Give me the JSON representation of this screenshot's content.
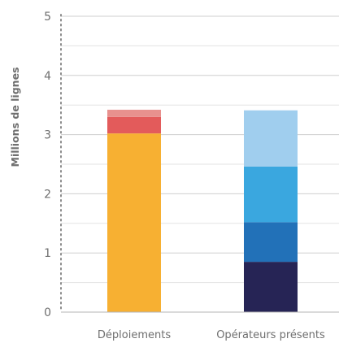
{
  "chart_data": {
    "type": "bar",
    "stacked": true,
    "ylabel": "Millions de lignes",
    "xlabel": "",
    "ylim": [
      0,
      5
    ],
    "yticks": [
      "0",
      "1",
      "2",
      "3",
      "4",
      "5"
    ],
    "minor_gridlines": true,
    "legend": "none",
    "categories": [
      "Déploiements",
      "Opérateurs présents"
    ],
    "bars": [
      {
        "category": "Déploiements",
        "segments": [
          {
            "value": 3.02,
            "color": "#F7B032"
          },
          {
            "value": 0.28,
            "color": "#E35B5B"
          },
          {
            "value": 0.12,
            "color": "#E8918E"
          }
        ]
      },
      {
        "category": "Opérateurs présents",
        "segments": [
          {
            "value": 0.85,
            "color": "#262455"
          },
          {
            "value": 0.67,
            "color": "#2271B8"
          },
          {
            "value": 0.94,
            "color": "#3AA7DF"
          },
          {
            "value": 0.95,
            "color": "#A0CEEE"
          }
        ]
      }
    ]
  }
}
